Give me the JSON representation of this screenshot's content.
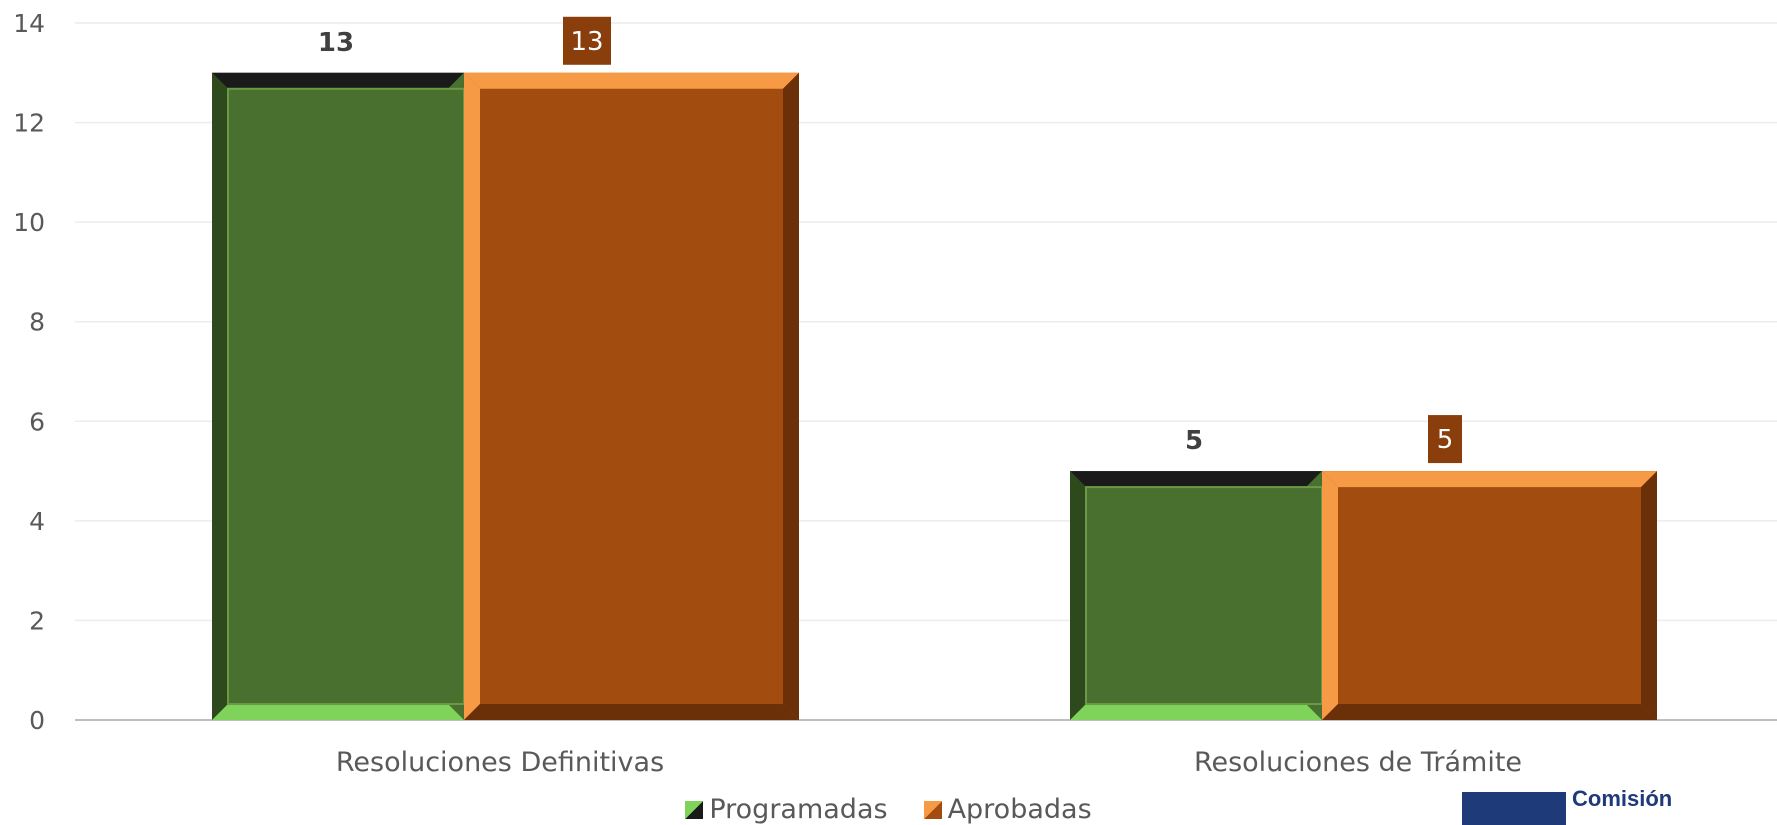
{
  "chart_data": {
    "type": "bar",
    "categories": [
      "Resoluciones Definitivas",
      "Resoluciones de Trámite"
    ],
    "series": [
      {
        "name": "Programadas",
        "values": [
          13,
          5
        ],
        "color": "#4a7030"
      },
      {
        "name": "Aprobadas",
        "values": [
          13,
          5
        ],
        "color": "#a24c10"
      }
    ],
    "data_labels": [
      [
        "13",
        "5"
      ],
      [
        "13",
        "5"
      ]
    ],
    "ylim": [
      0,
      14
    ],
    "yticks": [
      "0",
      "2",
      "4",
      "6",
      "8",
      "10",
      "12",
      "14"
    ],
    "grid": true,
    "legend_position": "bottom",
    "title": "",
    "xlabel": "",
    "ylabel": ""
  },
  "colors": {
    "programadas_face": "#4a7030",
    "programadas_dark": "#2e4a1c",
    "programadas_light": "#7fd25a",
    "aprobadas_face": "#a24c10",
    "aprobadas_dark": "#6c3008",
    "aprobadas_light": "#f79a45",
    "label_box": "#8a3e0c",
    "gridline": "#ececec",
    "axis": "#bfbfbf"
  },
  "logo": {
    "text": "Comisión"
  }
}
